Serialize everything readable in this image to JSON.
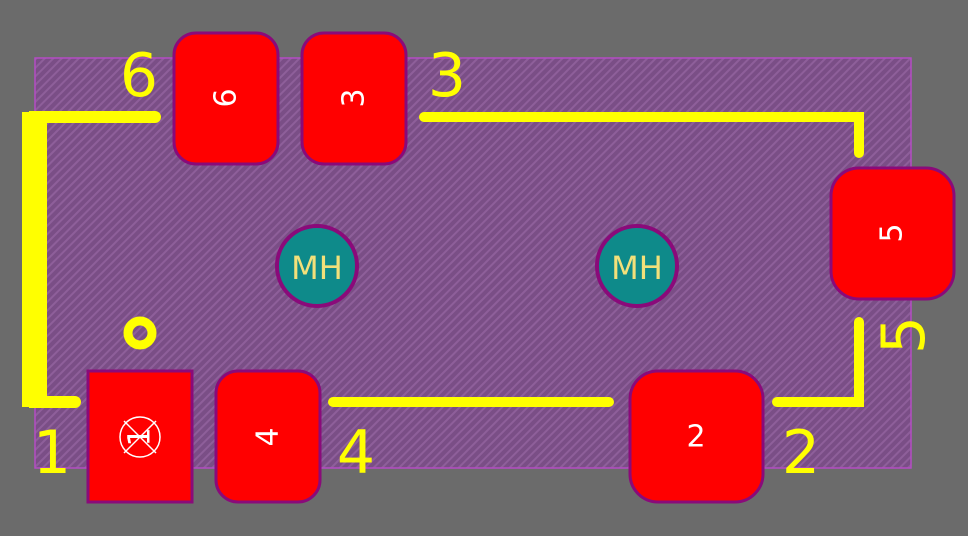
{
  "colors": {
    "background": "#6b6b6b",
    "board_fill": "#7a4e86",
    "board_stripe": "#8e5f9a",
    "board_outline": "#b44cc4",
    "silkscreen": "#ffff00",
    "pad_fill": "#ff0000",
    "pad_outline": "#8a0a7a",
    "hole_fill": "#0e8a8a",
    "hole_outline": "#8a0a7a",
    "hole_text": "#f2e07a"
  },
  "pads": {
    "pad1": {
      "label": "1",
      "shape": "rect"
    },
    "pad2": {
      "label": "2",
      "shape": "rounded"
    },
    "pad3": {
      "label": "3",
      "shape": "rounded"
    },
    "pad4": {
      "label": "4",
      "shape": "rounded"
    },
    "pad5": {
      "label": "5",
      "shape": "rounded"
    },
    "pad6": {
      "label": "6",
      "shape": "rounded"
    }
  },
  "designators": {
    "d1": "1",
    "d2": "2",
    "d3": "3",
    "d4": "4",
    "d5": "5",
    "d6": "6"
  },
  "mounting_holes": {
    "left": "MH",
    "right": "MH"
  }
}
